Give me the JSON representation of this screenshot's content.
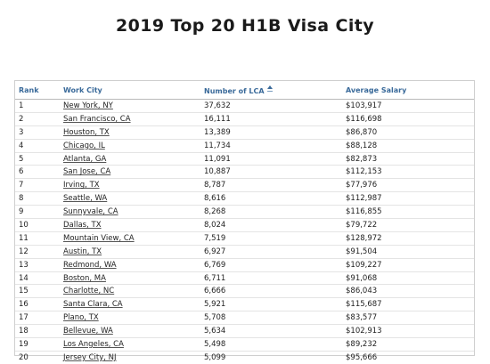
{
  "title": "2019 Top 20 H1B Visa City",
  "table": {
    "headers": {
      "rank": "Rank",
      "city": "Work City",
      "lca": "Number of LCA",
      "salary": "Average Salary"
    },
    "sort_icon": "sort-ascending-icon",
    "rows": [
      {
        "rank": "1",
        "city": "New York, NY",
        "lca": "37,632",
        "salary": "$103,917"
      },
      {
        "rank": "2",
        "city": "San Francisco, CA",
        "lca": "16,111",
        "salary": "$116,698"
      },
      {
        "rank": "3",
        "city": "Houston, TX",
        "lca": "13,389",
        "salary": "$86,870"
      },
      {
        "rank": "4",
        "city": "Chicago, IL",
        "lca": "11,734",
        "salary": "$88,128"
      },
      {
        "rank": "5",
        "city": "Atlanta, GA",
        "lca": "11,091",
        "salary": "$82,873"
      },
      {
        "rank": "6",
        "city": "San Jose, CA",
        "lca": "10,887",
        "salary": "$112,153"
      },
      {
        "rank": "7",
        "city": "Irving, TX",
        "lca": "8,787",
        "salary": "$77,976"
      },
      {
        "rank": "8",
        "city": "Seattle, WA",
        "lca": "8,616",
        "salary": "$112,987"
      },
      {
        "rank": "9",
        "city": "Sunnyvale, CA",
        "lca": "8,268",
        "salary": "$116,855"
      },
      {
        "rank": "10",
        "city": "Dallas, TX",
        "lca": "8,024",
        "salary": "$79,722"
      },
      {
        "rank": "11",
        "city": "Mountain View, CA",
        "lca": "7,519",
        "salary": "$128,972"
      },
      {
        "rank": "12",
        "city": "Austin, TX",
        "lca": "6,927",
        "salary": "$91,504"
      },
      {
        "rank": "13",
        "city": "Redmond, WA",
        "lca": "6,769",
        "salary": "$109,227"
      },
      {
        "rank": "14",
        "city": "Boston, MA",
        "lca": "6,711",
        "salary": "$91,068"
      },
      {
        "rank": "15",
        "city": "Charlotte, NC",
        "lca": "6,666",
        "salary": "$86,043"
      },
      {
        "rank": "16",
        "city": "Santa Clara, CA",
        "lca": "5,921",
        "salary": "$115,687"
      },
      {
        "rank": "17",
        "city": "Plano, TX",
        "lca": "5,708",
        "salary": "$83,577"
      },
      {
        "rank": "18",
        "city": "Bellevue, WA",
        "lca": "5,634",
        "salary": "$102,913"
      },
      {
        "rank": "19",
        "city": "Los Angeles, CA",
        "lca": "5,498",
        "salary": "$89,232"
      },
      {
        "rank": "20",
        "city": "Jersey City, NJ",
        "lca": "5,099",
        "salary": "$95,666"
      }
    ]
  }
}
